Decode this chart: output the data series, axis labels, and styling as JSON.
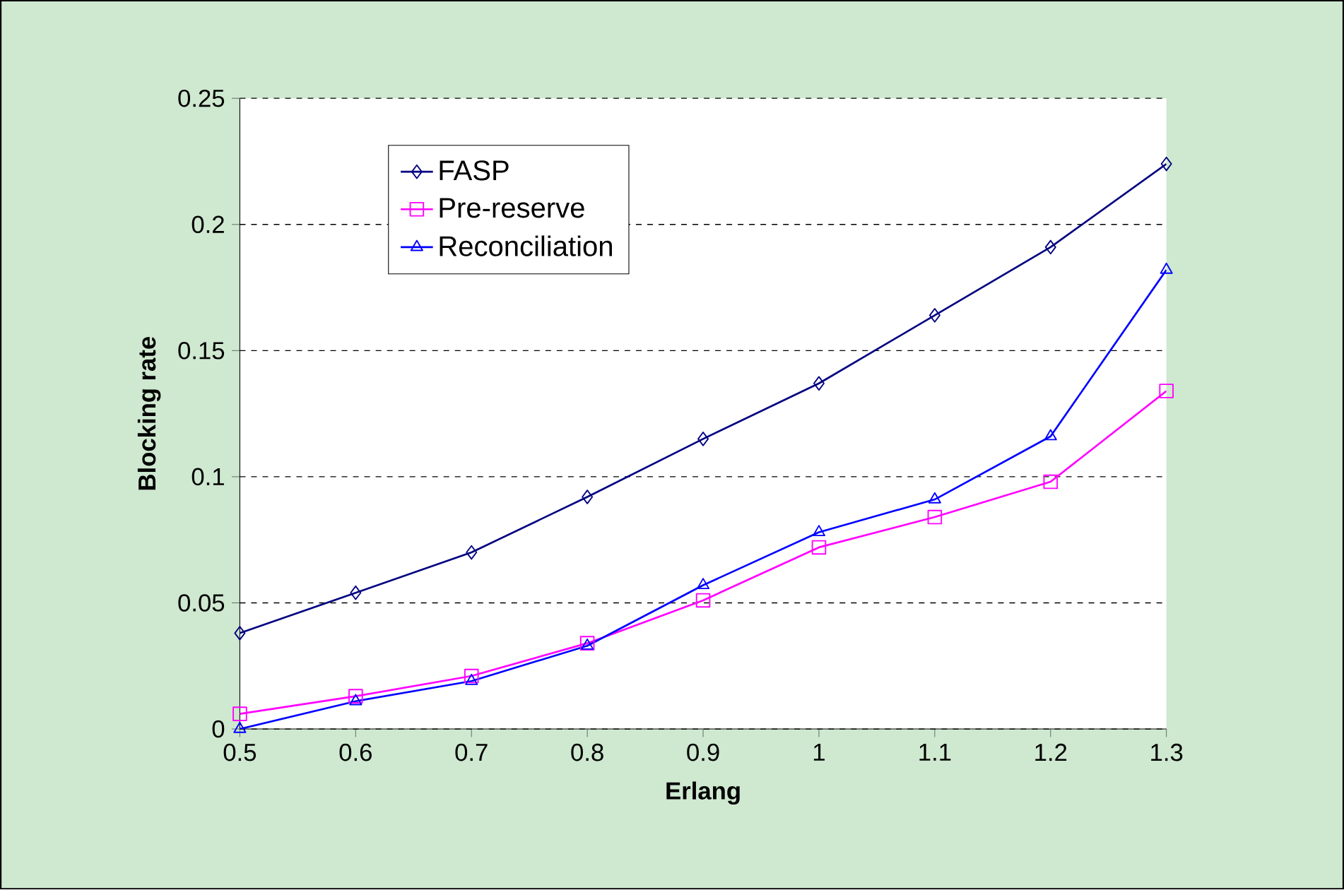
{
  "chart_data": {
    "type": "line",
    "xlabel": "Erlang",
    "ylabel": "Blocking rate",
    "x": [
      0.5,
      0.6,
      0.7,
      0.8,
      0.9,
      1,
      1.1,
      1.2,
      1.3
    ],
    "series": [
      {
        "name": "FASP",
        "color": "#000080",
        "marker": "diamond",
        "values": [
          0.038,
          0.054,
          0.07,
          0.092,
          0.115,
          0.137,
          0.164,
          0.191,
          0.224
        ]
      },
      {
        "name": "Pre-reserve",
        "color": "#ff00ff",
        "marker": "square",
        "values": [
          0.006,
          0.013,
          0.021,
          0.034,
          0.051,
          0.072,
          0.084,
          0.098,
          0.134
        ]
      },
      {
        "name": "Reconciliation",
        "color": "#0000ff",
        "marker": "triangle",
        "values": [
          0,
          0.011,
          0.019,
          0.033,
          0.057,
          0.078,
          0.091,
          0.116,
          0.182
        ]
      }
    ],
    "xlim": [
      0.5,
      1.3
    ],
    "ylim": [
      0,
      0.25
    ],
    "xticks": [
      0.5,
      0.6,
      0.7,
      0.8,
      0.9,
      1,
      1.1,
      1.2,
      1.3
    ],
    "yticks": [
      0,
      0.05,
      0.1,
      0.15,
      0.2,
      0.25
    ],
    "grid": "y",
    "legend": "top left",
    "line_style": "solid"
  }
}
